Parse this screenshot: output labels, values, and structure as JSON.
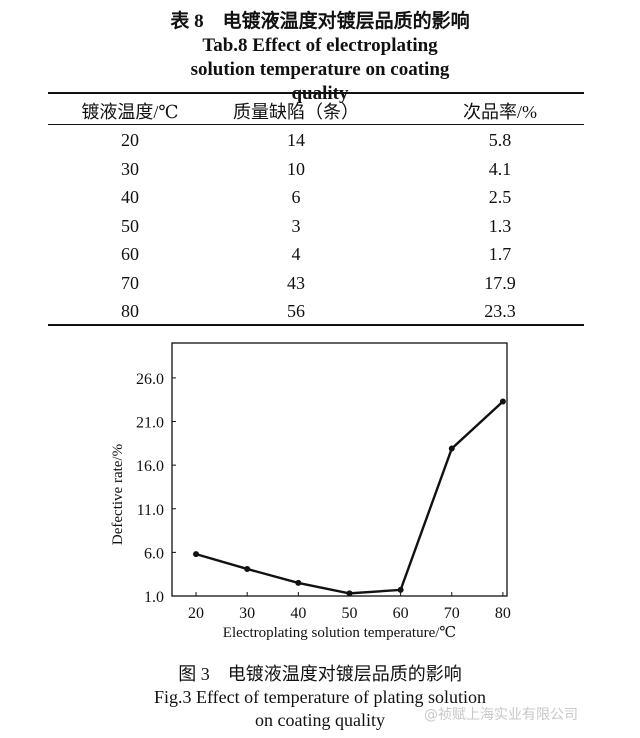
{
  "table": {
    "title_cn": "表 8　电镀液温度对镀层品质的影响",
    "title_en": "Tab.8 Effect of electroplating solution temperature on coating quality",
    "headers": [
      "镀液温度/℃",
      "质量缺陷（条）",
      "次品率/%"
    ],
    "rows": [
      [
        "20",
        "14",
        "5.8"
      ],
      [
        "30",
        "10",
        "4.1"
      ],
      [
        "40",
        "6",
        "2.5"
      ],
      [
        "50",
        "3",
        "1.3"
      ],
      [
        "60",
        "4",
        "1.7"
      ],
      [
        "70",
        "43",
        "17.9"
      ],
      [
        "80",
        "56",
        "23.3"
      ]
    ]
  },
  "chart_data": {
    "type": "line",
    "x": [
      20,
      30,
      40,
      50,
      60,
      70,
      80
    ],
    "series": [
      {
        "name": "Defective rate",
        "values": [
          5.8,
          4.1,
          2.5,
          1.3,
          1.7,
          17.9,
          23.3
        ]
      }
    ],
    "xlabel": "Electroplating solution temperature/℃",
    "ylabel": "Defective rate/%",
    "xticks": [
      "20",
      "30",
      "40",
      "50",
      "60",
      "70",
      "80"
    ],
    "yticks": [
      "1.0",
      "6.0",
      "11.0",
      "16.0",
      "21.0",
      "26.0"
    ],
    "xlim": [
      15.3,
      80.8
    ],
    "ylim": [
      1.0,
      30.0
    ],
    "grid": false
  },
  "figure": {
    "caption_cn": "图 3　电镀液温度对镀层品质的影响",
    "caption_en": "Fig.3 Effect of temperature of plating solution on coating quality"
  },
  "watermark": "@祯赋上海实业有限公司"
}
